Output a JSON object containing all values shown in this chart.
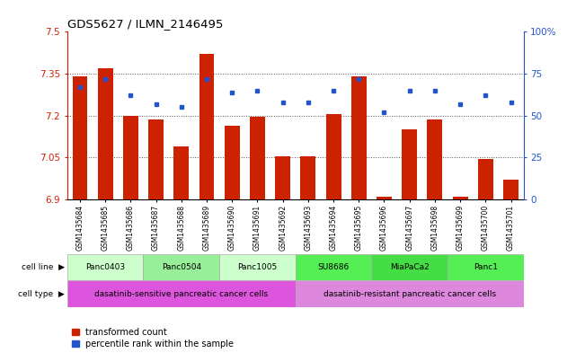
{
  "title": "GDS5627 / ILMN_2146495",
  "samples": [
    "GSM1435684",
    "GSM1435685",
    "GSM1435686",
    "GSM1435687",
    "GSM1435688",
    "GSM1435689",
    "GSM1435690",
    "GSM1435691",
    "GSM1435692",
    "GSM1435693",
    "GSM1435694",
    "GSM1435695",
    "GSM1435696",
    "GSM1435697",
    "GSM1435698",
    "GSM1435699",
    "GSM1435700",
    "GSM1435701"
  ],
  "bar_values": [
    7.34,
    7.37,
    7.2,
    7.185,
    7.09,
    7.42,
    7.165,
    7.195,
    7.055,
    7.055,
    7.205,
    7.34,
    6.91,
    7.15,
    7.185,
    6.91,
    7.045,
    6.97
  ],
  "dot_values": [
    67,
    72,
    62,
    57,
    55,
    72,
    64,
    65,
    58,
    58,
    65,
    72,
    52,
    65,
    65,
    57,
    62,
    58
  ],
  "ylim": [
    6.9,
    7.5
  ],
  "yticks": [
    6.9,
    7.05,
    7.2,
    7.35,
    7.5
  ],
  "ytick_labels": [
    "6.9",
    "7.05",
    "7.2",
    "7.35",
    "7.5"
  ],
  "y2lim": [
    0,
    100
  ],
  "y2ticks": [
    0,
    25,
    50,
    75,
    100
  ],
  "y2tick_labels": [
    "0",
    "25",
    "50",
    "75",
    "100%"
  ],
  "bar_color": "#cc2200",
  "dot_color": "#2255cc",
  "cell_line_groups": [
    {
      "label": "Panc0403",
      "start": 0,
      "end": 2,
      "color": "#ccffcc"
    },
    {
      "label": "Panc0504",
      "start": 3,
      "end": 5,
      "color": "#99ee99"
    },
    {
      "label": "Panc1005",
      "start": 6,
      "end": 8,
      "color": "#ccffcc"
    },
    {
      "label": "SU8686",
      "start": 9,
      "end": 11,
      "color": "#55ee55"
    },
    {
      "label": "MiaPaCa2",
      "start": 12,
      "end": 14,
      "color": "#44dd44"
    },
    {
      "label": "Panc1",
      "start": 15,
      "end": 17,
      "color": "#55ee55"
    }
  ],
  "cell_type_groups": [
    {
      "label": "dasatinib-sensitive pancreatic cancer cells",
      "start": 0,
      "end": 8,
      "color": "#dd55dd"
    },
    {
      "label": "dasatinib-resistant pancreatic cancer cells",
      "start": 9,
      "end": 17,
      "color": "#dd88dd"
    }
  ],
  "bg_color": "#ffffff",
  "grid_color": "#555555",
  "label_color_red": "#cc2200",
  "label_color_blue": "#2255cc"
}
